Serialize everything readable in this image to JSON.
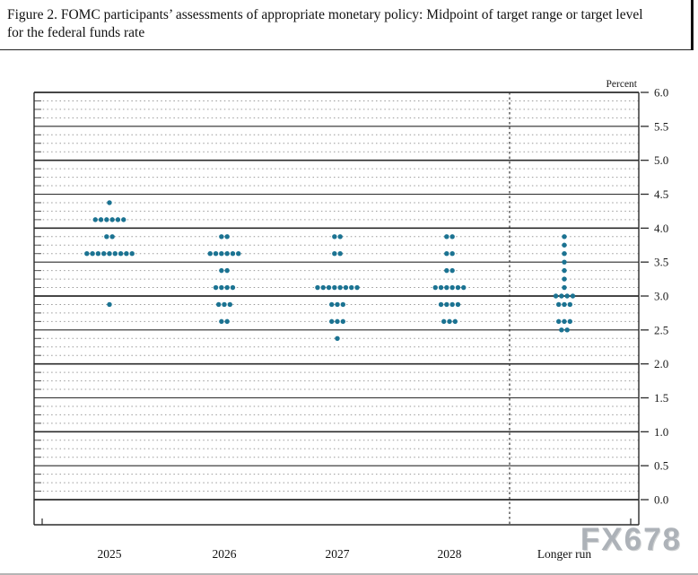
{
  "figure": {
    "title": "Figure 2. FOMC participants’ assessments of appropriate monetary policy: Midpoint of target range or target level for the federal funds rate"
  },
  "watermark": {
    "text": "FX678"
  },
  "chart_data": {
    "type": "scatter",
    "subtype": "fomc-dot-plot",
    "title": "FOMC participants’ assessments of appropriate monetary policy: Midpoint of target range or target level for the federal funds rate",
    "xlabel": "",
    "ylabel": "Percent",
    "ylim": [
      0.0,
      6.0
    ],
    "ytick_step": 0.5,
    "ytick_labels": [
      "6.0",
      "5.5",
      "5.0",
      "4.5",
      "4.0",
      "3.5",
      "3.0",
      "2.5",
      "2.0",
      "1.5",
      "1.0",
      "0.5",
      "0.0"
    ],
    "grid": {
      "solid_every": 0.5,
      "dotted_every": 0.125,
      "grid_on": true
    },
    "legend": "none",
    "categories": [
      "2025",
      "2026",
      "2027",
      "2028",
      "Longer run"
    ],
    "separator_before_category": "Longer run",
    "dot_color": "#1b7392",
    "dots": [
      {
        "category": "2025",
        "value": 4.375,
        "count": 1
      },
      {
        "category": "2025",
        "value": 4.125,
        "count": 6
      },
      {
        "category": "2025",
        "value": 3.875,
        "count": 2
      },
      {
        "category": "2025",
        "value": 3.625,
        "count": 9
      },
      {
        "category": "2025",
        "value": 2.875,
        "count": 1
      },
      {
        "category": "2026",
        "value": 3.875,
        "count": 2
      },
      {
        "category": "2026",
        "value": 3.625,
        "count": 6
      },
      {
        "category": "2026",
        "value": 3.375,
        "count": 2
      },
      {
        "category": "2026",
        "value": 3.125,
        "count": 4
      },
      {
        "category": "2026",
        "value": 2.875,
        "count": 3
      },
      {
        "category": "2026",
        "value": 2.625,
        "count": 2
      },
      {
        "category": "2027",
        "value": 3.875,
        "count": 2
      },
      {
        "category": "2027",
        "value": 3.625,
        "count": 2
      },
      {
        "category": "2027",
        "value": 3.125,
        "count": 8
      },
      {
        "category": "2027",
        "value": 2.875,
        "count": 3
      },
      {
        "category": "2027",
        "value": 2.625,
        "count": 3
      },
      {
        "category": "2027",
        "value": 2.375,
        "count": 1
      },
      {
        "category": "2028",
        "value": 3.875,
        "count": 2
      },
      {
        "category": "2028",
        "value": 3.625,
        "count": 2
      },
      {
        "category": "2028",
        "value": 3.375,
        "count": 2
      },
      {
        "category": "2028",
        "value": 3.125,
        "count": 6
      },
      {
        "category": "2028",
        "value": 2.875,
        "count": 4
      },
      {
        "category": "2028",
        "value": 2.625,
        "count": 3
      },
      {
        "category": "Longer run",
        "value": 3.875,
        "count": 1
      },
      {
        "category": "Longer run",
        "value": 3.75,
        "count": 1
      },
      {
        "category": "Longer run",
        "value": 3.625,
        "count": 1
      },
      {
        "category": "Longer run",
        "value": 3.5,
        "count": 1
      },
      {
        "category": "Longer run",
        "value": 3.375,
        "count": 1
      },
      {
        "category": "Longer run",
        "value": 3.25,
        "count": 1
      },
      {
        "category": "Longer run",
        "value": 3.125,
        "count": 1
      },
      {
        "category": "Longer run",
        "value": 3.0,
        "count": 4
      },
      {
        "category": "Longer run",
        "value": 2.875,
        "count": 3
      },
      {
        "category": "Longer run",
        "value": 2.625,
        "count": 3
      },
      {
        "category": "Longer run",
        "value": 2.5,
        "count": 2
      }
    ]
  }
}
